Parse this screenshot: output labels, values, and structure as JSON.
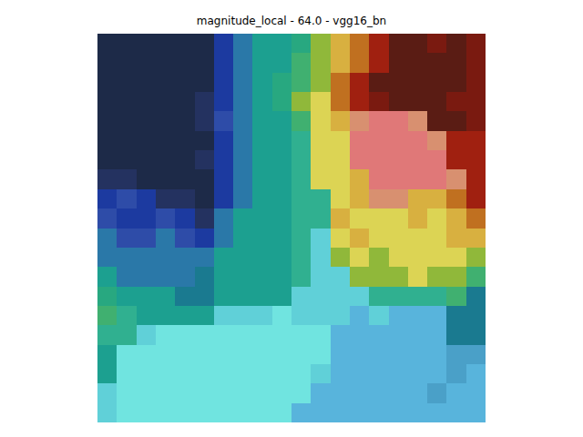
{
  "chart_data": {
    "type": "heatmap",
    "title": "magnitude_local - 64.0 - vgg16_bn",
    "tick_labels": false,
    "colors": [
      [
        "#1d2a48",
        "#1d2a48",
        "#1d2a48",
        "#1d2a48",
        "#1d2a48",
        "#1d2a48",
        "#1c3aa0",
        "#2a78a8",
        "#1ca090",
        "#1ca090",
        "#28a880",
        "#90b83a",
        "#d8b040",
        "#c07020",
        "#a02010",
        "#5a1c14",
        "#5a1c14",
        "#7a1a10",
        "#5a1c14",
        "#7a1a10"
      ],
      [
        "#1d2a48",
        "#1d2a48",
        "#1d2a48",
        "#1d2a48",
        "#1d2a48",
        "#1d2a48",
        "#1c3aa0",
        "#2a78a8",
        "#1ca090",
        "#1ca090",
        "#40b070",
        "#90b83a",
        "#d8b040",
        "#c07020",
        "#a02010",
        "#5a1c14",
        "#5a1c14",
        "#5a1c14",
        "#5a1c14",
        "#7a1a10"
      ],
      [
        "#1d2a48",
        "#1d2a48",
        "#1d2a48",
        "#1d2a48",
        "#1d2a48",
        "#1d2a48",
        "#1c3aa0",
        "#2a78a8",
        "#1ca090",
        "#28a880",
        "#40b070",
        "#90b83a",
        "#c07020",
        "#a02010",
        "#5a1c14",
        "#5a1c14",
        "#5a1c14",
        "#5a1c14",
        "#5a1c14",
        "#7a1a10"
      ],
      [
        "#1d2a48",
        "#1d2a48",
        "#1d2a48",
        "#1d2a48",
        "#1d2a48",
        "#243260",
        "#1c3aa0",
        "#2a78a8",
        "#1ca090",
        "#28a880",
        "#90b83a",
        "#dcd454",
        "#c07020",
        "#a02010",
        "#7a1a10",
        "#5a1c14",
        "#5a1c14",
        "#5a1c14",
        "#7a1a10",
        "#7a1a10"
      ],
      [
        "#1d2a48",
        "#1d2a48",
        "#1d2a48",
        "#1d2a48",
        "#1d2a48",
        "#243260",
        "#2e4ca8",
        "#2a78a8",
        "#1ca090",
        "#1ca090",
        "#40b070",
        "#dcd454",
        "#d8b040",
        "#d89070",
        "#e07878",
        "#e07878",
        "#d89070",
        "#5a1c14",
        "#5a1c14",
        "#7a1a10"
      ],
      [
        "#1d2a48",
        "#1d2a48",
        "#1d2a48",
        "#1d2a48",
        "#1d2a48",
        "#1d2a48",
        "#1c3aa0",
        "#2a78a8",
        "#1ca090",
        "#1ca090",
        "#30b090",
        "#dcd454",
        "#dcd454",
        "#e07878",
        "#e07878",
        "#e07878",
        "#e07878",
        "#d89070",
        "#a02010",
        "#a02010"
      ],
      [
        "#1d2a48",
        "#1d2a48",
        "#1d2a48",
        "#1d2a48",
        "#1d2a48",
        "#243260",
        "#1c3aa0",
        "#2a78a8",
        "#1ca090",
        "#1ca090",
        "#30b090",
        "#dcd454",
        "#dcd454",
        "#e07878",
        "#e07878",
        "#e07878",
        "#e07878",
        "#e07878",
        "#a02010",
        "#a02010"
      ],
      [
        "#243260",
        "#243260",
        "#1d2a48",
        "#1d2a48",
        "#1d2a48",
        "#1d2a48",
        "#1c3aa0",
        "#2a78a8",
        "#1ca090",
        "#1ca090",
        "#30b090",
        "#dcd454",
        "#dcd454",
        "#d8b040",
        "#e07878",
        "#e07878",
        "#e07878",
        "#e07878",
        "#d89070",
        "#a02010"
      ],
      [
        "#1c3aa0",
        "#2e4ca8",
        "#1c3aa0",
        "#243260",
        "#243260",
        "#1d2a48",
        "#1c3aa0",
        "#2a78a8",
        "#1ca090",
        "#1ca090",
        "#30b090",
        "#30b090",
        "#dcd454",
        "#d8b040",
        "#d89070",
        "#d89070",
        "#d8b040",
        "#d8b040",
        "#c07020",
        "#a02010"
      ],
      [
        "#2e4ca8",
        "#1c3aa0",
        "#1c3aa0",
        "#2e4ca8",
        "#1c3aa0",
        "#243260",
        "#2a78a8",
        "#1ca090",
        "#1ca090",
        "#1ca090",
        "#30b090",
        "#30b090",
        "#d8b040",
        "#dcd454",
        "#dcd454",
        "#dcd454",
        "#d8b040",
        "#dcd454",
        "#d8b040",
        "#c07020"
      ],
      [
        "#2a78a8",
        "#2e4ca8",
        "#2e4ca8",
        "#2a78a8",
        "#2e4ca8",
        "#1c3aa0",
        "#2a78a8",
        "#1ca090",
        "#1ca090",
        "#1ca090",
        "#30b090",
        "#60d0d8",
        "#dcd454",
        "#d8b040",
        "#dcd454",
        "#dcd454",
        "#dcd454",
        "#dcd454",
        "#d8b040",
        "#d8b040"
      ],
      [
        "#2a78a8",
        "#2a78a8",
        "#2a78a8",
        "#2a78a8",
        "#2a78a8",
        "#2a78a8",
        "#1ca090",
        "#1ca090",
        "#1ca090",
        "#1ca090",
        "#30b090",
        "#60d0d8",
        "#90b83a",
        "#dcd454",
        "#90b83a",
        "#dcd454",
        "#dcd454",
        "#dcd454",
        "#dcd454",
        "#90b83a"
      ],
      [
        "#1ca090",
        "#2a78a8",
        "#2a78a8",
        "#2a78a8",
        "#2a78a8",
        "#1a7a90",
        "#1ca090",
        "#1ca090",
        "#1ca090",
        "#1ca090",
        "#30b090",
        "#60d0d8",
        "#60d0d8",
        "#90b83a",
        "#90b83a",
        "#90b83a",
        "#dcd454",
        "#90b83a",
        "#90b83a",
        "#40b070"
      ],
      [
        "#28a880",
        "#1ca090",
        "#1ca090",
        "#1ca090",
        "#1a7a90",
        "#1a7a90",
        "#1ca090",
        "#1ca090",
        "#1ca090",
        "#1ca090",
        "#60d0d8",
        "#60d0d8",
        "#60d0d8",
        "#60d0d8",
        "#30b090",
        "#30b090",
        "#30b090",
        "#30b090",
        "#40b070",
        "#1a7a90"
      ],
      [
        "#40b070",
        "#30b090",
        "#1ca090",
        "#1ca090",
        "#1ca090",
        "#1ca090",
        "#60d0d8",
        "#60d0d8",
        "#60d0d8",
        "#70e4e0",
        "#60d0d8",
        "#60d0d8",
        "#60d0d8",
        "#58b4dc",
        "#60d0d8",
        "#58b4dc",
        "#58b4dc",
        "#58b4dc",
        "#1a7a90",
        "#1a7a90"
      ],
      [
        "#30b090",
        "#30b090",
        "#60d0d8",
        "#70e4e0",
        "#70e4e0",
        "#70e4e0",
        "#70e4e0",
        "#70e4e0",
        "#70e4e0",
        "#70e4e0",
        "#70e4e0",
        "#70e4e0",
        "#58b4dc",
        "#58b4dc",
        "#58b4dc",
        "#58b4dc",
        "#58b4dc",
        "#58b4dc",
        "#1a7a90",
        "#1a7a90"
      ],
      [
        "#1ca090",
        "#70e4e0",
        "#70e4e0",
        "#70e4e0",
        "#70e4e0",
        "#70e4e0",
        "#70e4e0",
        "#70e4e0",
        "#70e4e0",
        "#70e4e0",
        "#70e4e0",
        "#70e4e0",
        "#58b4dc",
        "#58b4dc",
        "#58b4dc",
        "#58b4dc",
        "#58b4dc",
        "#58b4dc",
        "#4aa0c8",
        "#4aa0c8"
      ],
      [
        "#1ca090",
        "#70e4e0",
        "#70e4e0",
        "#70e4e0",
        "#70e4e0",
        "#70e4e0",
        "#70e4e0",
        "#70e4e0",
        "#70e4e0",
        "#70e4e0",
        "#70e4e0",
        "#60d0d8",
        "#58b4dc",
        "#58b4dc",
        "#58b4dc",
        "#58b4dc",
        "#58b4dc",
        "#58b4dc",
        "#4aa0c8",
        "#58b4dc"
      ],
      [
        "#60d0d8",
        "#70e4e0",
        "#70e4e0",
        "#70e4e0",
        "#70e4e0",
        "#70e4e0",
        "#70e4e0",
        "#70e4e0",
        "#70e4e0",
        "#70e4e0",
        "#70e4e0",
        "#58b4dc",
        "#58b4dc",
        "#58b4dc",
        "#58b4dc",
        "#58b4dc",
        "#58b4dc",
        "#4aa0c8",
        "#58b4dc",
        "#58b4dc"
      ],
      [
        "#60d0d8",
        "#70e4e0",
        "#70e4e0",
        "#70e4e0",
        "#70e4e0",
        "#70e4e0",
        "#70e4e0",
        "#70e4e0",
        "#70e4e0",
        "#70e4e0",
        "#58b4dc",
        "#58b4dc",
        "#58b4dc",
        "#58b4dc",
        "#58b4dc",
        "#58b4dc",
        "#58b4dc",
        "#58b4dc",
        "#58b4dc",
        "#58b4dc"
      ]
    ]
  }
}
